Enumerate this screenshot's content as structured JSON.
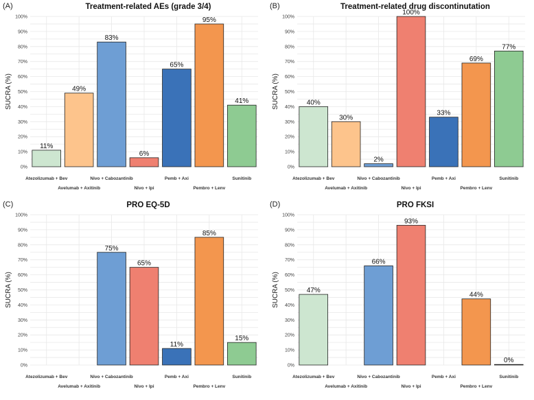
{
  "chart_data": [
    {
      "type": "bar",
      "panel": "(A)",
      "title": "Treatment-related AEs (grade 3/4)",
      "ylabel": "SUCRA (%)",
      "xlabel": "",
      "ylim": [
        0,
        100
      ],
      "yticks": [
        "0%",
        "10%",
        "20%",
        "30%",
        "40%",
        "50%",
        "60%",
        "70%",
        "80%",
        "90%",
        "100%"
      ],
      "categories": [
        "Atezolizumab + Bev",
        "Avelumab + Axitinib",
        "Nivo + Cabozantinib",
        "Nivo + Ipi",
        "Pemb + Axi",
        "Pembro + Lenv",
        "Sunitinib"
      ],
      "values": [
        11,
        49,
        83,
        6,
        65,
        95,
        41
      ],
      "labels": [
        "11%",
        "49%",
        "83%",
        "6%",
        "65%",
        "95%",
        "41%"
      ]
    },
    {
      "type": "bar",
      "panel": "(B)",
      "title": "Treatment-related drug discontinutation",
      "ylabel": "SUCRA (%)",
      "xlabel": "",
      "ylim": [
        0,
        100
      ],
      "yticks": [
        "0%",
        "10%",
        "20%",
        "30%",
        "40%",
        "50%",
        "60%",
        "70%",
        "80%",
        "90%",
        "100%"
      ],
      "categories": [
        "Atezolizumab + Bev",
        "Avelumab + Axitinib",
        "Nivo + Cabozantinib",
        "Nivo + Ipi",
        "Pemb + Axi",
        "Pembro + Lenv",
        "Sunitinib"
      ],
      "values": [
        40,
        30,
        2,
        100,
        33,
        69,
        77
      ],
      "labels": [
        "40%",
        "30%",
        "2%",
        "100%",
        "33%",
        "69%",
        "77%"
      ]
    },
    {
      "type": "bar",
      "panel": "(C)",
      "title": "PRO EQ-5D",
      "ylabel": "SUCRA (%)",
      "xlabel": "",
      "ylim": [
        0,
        100
      ],
      "yticks": [
        "0%",
        "10%",
        "20%",
        "30%",
        "40%",
        "50%",
        "60%",
        "70%",
        "80%",
        "90%",
        "100%"
      ],
      "categories": [
        "Atezolizumab + Bev",
        "Avelumab + Axitinib",
        "Nivo + Cabozantinib",
        "Nivo + Ipi",
        "Pemb + Axi",
        "Pembro + Lenv",
        "Sunitinib"
      ],
      "values": [
        null,
        null,
        75,
        65,
        11,
        85,
        15
      ],
      "labels": [
        "",
        "",
        "75%",
        "65%",
        "11%",
        "85%",
        "15%"
      ]
    },
    {
      "type": "bar",
      "panel": "(D)",
      "title": "PRO FKSI",
      "ylabel": "SUCRA (%)",
      "xlabel": "",
      "ylim": [
        0,
        100
      ],
      "yticks": [
        "0%",
        "10%",
        "20%",
        "30%",
        "40%",
        "50%",
        "60%",
        "70%",
        "80%",
        "90%",
        "100%"
      ],
      "categories": [
        "Atezolizumab + Bev",
        "Avelumab + Axitinib",
        "Nivo + Cabozantinib",
        "Nivo + Ipi",
        "Pemb + Axi",
        "Pembro + Lenv",
        "Sunitinib"
      ],
      "values": [
        47,
        null,
        66,
        93,
        null,
        44,
        0
      ],
      "labels": [
        "47%",
        "",
        "66%",
        "93%",
        "",
        "44%",
        "0%"
      ]
    }
  ],
  "colors": {
    "Atezolizumab + Bev": "#cde6d0",
    "Avelumab + Axitinib": "#fdc48c",
    "Nivo + Cabozantinib": "#6e9ed4",
    "Nivo + Ipi": "#ef8070",
    "Pemb + Axi": "#3a72b8",
    "Pembro + Lenv": "#f3964e",
    "Sunitinib": "#8ecb92"
  }
}
